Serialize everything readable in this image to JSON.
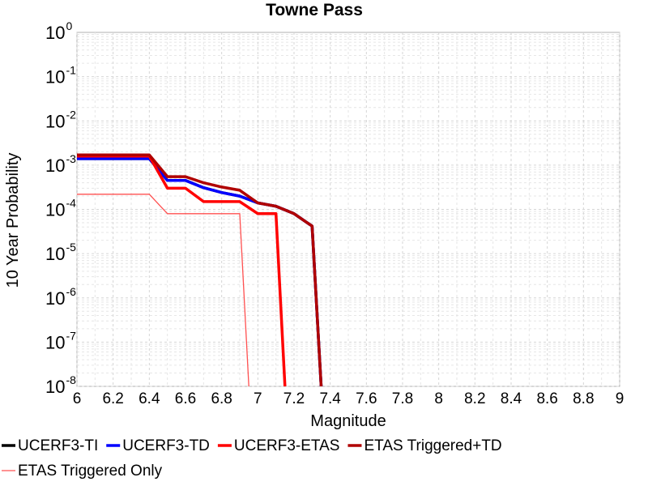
{
  "chart_data": {
    "type": "line",
    "title": "Towne Pass",
    "xlabel": "Magnitude",
    "ylabel": "10 Year Probability",
    "xlim": [
      6,
      9
    ],
    "ylim": [
      1e-08,
      1
    ],
    "yscale": "log",
    "grid": true,
    "legend_position": "bottom",
    "x_ticks": [
      "6",
      "6.2",
      "6.4",
      "6.6",
      "6.8",
      "7",
      "7.2",
      "7.4",
      "7.6",
      "7.8",
      "8",
      "8.2",
      "8.4",
      "8.6",
      "8.8",
      "9"
    ],
    "y_ticks": [
      {
        "base": "10",
        "exp": "0"
      },
      {
        "base": "10",
        "exp": "-1"
      },
      {
        "base": "10",
        "exp": "-2"
      },
      {
        "base": "10",
        "exp": "-3"
      },
      {
        "base": "10",
        "exp": "-4"
      },
      {
        "base": "10",
        "exp": "-5"
      },
      {
        "base": "10",
        "exp": "-6"
      },
      {
        "base": "10",
        "exp": "-7"
      },
      {
        "base": "10",
        "exp": "-8"
      }
    ],
    "series": [
      {
        "name": "UCERF3-TI",
        "color": "#000000",
        "width": "thick",
        "points": [
          [
            6.0,
            0.0014
          ],
          [
            6.1,
            0.0014
          ],
          [
            6.2,
            0.0014
          ],
          [
            6.3,
            0.0014
          ],
          [
            6.4,
            0.0014
          ],
          [
            6.5,
            0.00045
          ],
          [
            6.6,
            0.00045
          ],
          [
            6.7,
            0.00031
          ],
          [
            6.8,
            0.00024
          ],
          [
            6.9,
            0.0002
          ],
          [
            7.0,
            0.00014
          ],
          [
            7.1,
            0.000118
          ],
          [
            7.2,
            8e-05
          ],
          [
            7.3,
            4.2e-05
          ],
          [
            7.35,
            1e-08
          ]
        ]
      },
      {
        "name": "UCERF3-TD",
        "color": "#0000ff",
        "width": "thick",
        "points": [
          [
            6.0,
            0.0014
          ],
          [
            6.1,
            0.0014
          ],
          [
            6.2,
            0.0014
          ],
          [
            6.3,
            0.0014
          ],
          [
            6.4,
            0.0014
          ],
          [
            6.5,
            0.00045
          ],
          [
            6.6,
            0.00045
          ],
          [
            6.7,
            0.00031
          ],
          [
            6.8,
            0.00024
          ],
          [
            6.9,
            0.0002
          ],
          [
            7.0,
            0.00014
          ],
          [
            7.1,
            0.000118
          ],
          [
            7.2,
            8e-05
          ],
          [
            7.3,
            4.2e-05
          ],
          [
            7.35,
            1e-08
          ]
        ]
      },
      {
        "name": "UCERF3-ETAS",
        "color": "#ff0000",
        "width": "thick",
        "points": [
          [
            6.0,
            0.0016
          ],
          [
            6.1,
            0.0016
          ],
          [
            6.2,
            0.0016
          ],
          [
            6.3,
            0.0016
          ],
          [
            6.4,
            0.0016
          ],
          [
            6.5,
            0.0003
          ],
          [
            6.6,
            0.0003
          ],
          [
            6.7,
            0.00015
          ],
          [
            6.8,
            0.00015
          ],
          [
            6.9,
            0.00015
          ],
          [
            7.0,
            8e-05
          ],
          [
            7.1,
            8e-05
          ],
          [
            7.15,
            1e-08
          ]
        ]
      },
      {
        "name": "ETAS Triggered+TD",
        "color": "#b00000",
        "width": "thick",
        "points": [
          [
            6.0,
            0.0017
          ],
          [
            6.1,
            0.0017
          ],
          [
            6.2,
            0.0017
          ],
          [
            6.3,
            0.0017
          ],
          [
            6.4,
            0.0017
          ],
          [
            6.5,
            0.00055
          ],
          [
            6.6,
            0.00055
          ],
          [
            6.7,
            0.0004
          ],
          [
            6.8,
            0.00032
          ],
          [
            6.9,
            0.00027
          ],
          [
            7.0,
            0.00014
          ],
          [
            7.1,
            0.000118
          ],
          [
            7.2,
            8e-05
          ],
          [
            7.3,
            4.2e-05
          ],
          [
            7.35,
            1e-08
          ]
        ]
      },
      {
        "name": "ETAS Triggered Only",
        "color": "#ff5050",
        "width": "thin",
        "points": [
          [
            6.0,
            0.00022
          ],
          [
            6.1,
            0.00022
          ],
          [
            6.2,
            0.00022
          ],
          [
            6.3,
            0.00022
          ],
          [
            6.4,
            0.00022
          ],
          [
            6.5,
            8e-05
          ],
          [
            6.6,
            8e-05
          ],
          [
            6.7,
            8e-05
          ],
          [
            6.8,
            8e-05
          ],
          [
            6.9,
            8e-05
          ],
          [
            6.95,
            1e-08
          ]
        ]
      }
    ]
  }
}
